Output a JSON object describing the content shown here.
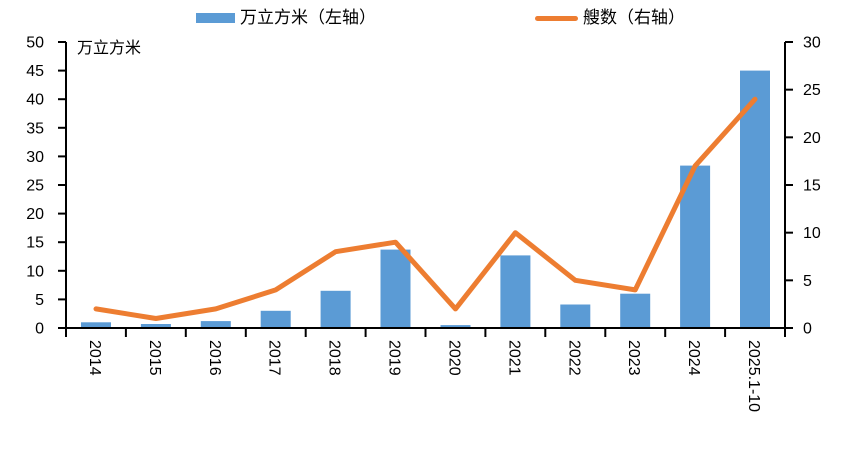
{
  "legend": {
    "bar": {
      "label": "万立方米（左轴）",
      "color": "#5B9BD5"
    },
    "line": {
      "label": "艘数（右轴）",
      "color": "#ED7D31"
    }
  },
  "chart_data": {
    "type": "bar",
    "subtype": "bar+line dual axis combo",
    "categories": [
      "2014",
      "2015",
      "2016",
      "2017",
      "2018",
      "2019",
      "2020",
      "2021",
      "2022",
      "2023",
      "2024",
      "2025.1-10"
    ],
    "series": [
      {
        "name": "万立方米（左轴）",
        "type": "bar",
        "axis": "left",
        "color": "#5B9BD5",
        "values": [
          1.0,
          0.7,
          1.2,
          3.0,
          6.5,
          13.7,
          0.5,
          12.7,
          4.1,
          6.0,
          28.4,
          45.0
        ]
      },
      {
        "name": "艘数（右轴）",
        "type": "line",
        "axis": "right",
        "color": "#ED7D31",
        "values": [
          2,
          1,
          2,
          4,
          8,
          9,
          2,
          10,
          5,
          4,
          17,
          24
        ]
      }
    ],
    "left_axis": {
      "title": "万立方米",
      "min": 0,
      "max": 50,
      "step": 5
    },
    "right_axis": {
      "title": "艘数",
      "min": 0,
      "max": 30,
      "step": 5
    },
    "grid": false,
    "legend_position": "top",
    "x_tick_label_rotation": 90,
    "axis_color": "#000000"
  }
}
